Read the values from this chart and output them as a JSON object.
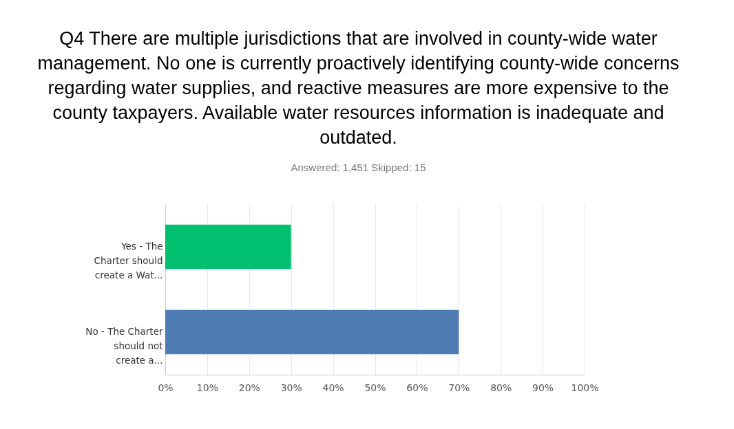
{
  "chart_data": {
    "type": "bar",
    "orientation": "horizontal",
    "title": "Q4 There are multiple jurisdictions that are involved in county-wide water management. No one is currently proactively identifying county-wide concerns regarding water supplies, and reactive measures are more expensive to the county taxpayers. Available water resources information is inadequate and outdated.",
    "subtitle": "Answered: 1,451      Skipped: 15",
    "categories": [
      "Yes - The Charter should create a Wat...",
      "No - The Charter should not create a..."
    ],
    "values": [
      30,
      70
    ],
    "colors": [
      "#00bf6f",
      "#507cb6"
    ],
    "xlim": [
      0,
      100
    ],
    "xticks": [
      {
        "value": 0,
        "label": "0%"
      },
      {
        "value": 10,
        "label": "10%"
      },
      {
        "value": 20,
        "label": "20%"
      },
      {
        "value": 30,
        "label": "30%"
      },
      {
        "value": 40,
        "label": "40%"
      },
      {
        "value": 50,
        "label": "50%"
      },
      {
        "value": 60,
        "label": "60%"
      },
      {
        "value": 70,
        "label": "70%"
      },
      {
        "value": 80,
        "label": "80%"
      },
      {
        "value": 90,
        "label": "90%"
      },
      {
        "value": 100,
        "label": "100%"
      }
    ],
    "grid": "x"
  }
}
